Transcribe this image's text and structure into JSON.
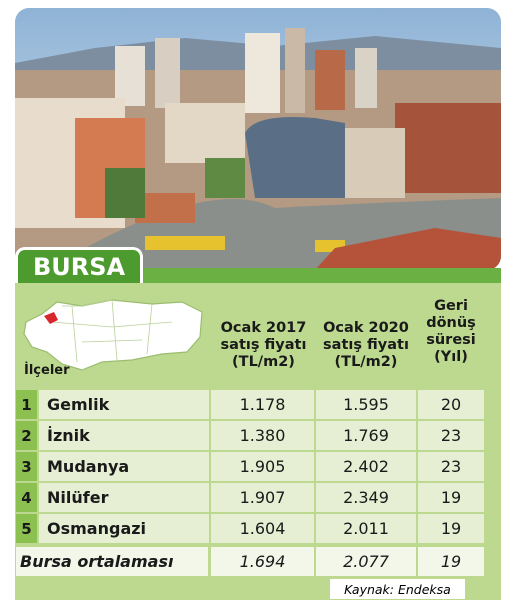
{
  "header": {
    "title": "BURSA"
  },
  "table": {
    "columns": [
      [
        "İlçeler"
      ],
      [
        "Ocak 2017",
        "satış fiyatı",
        "(TL/m2)"
      ],
      [
        "Ocak 2020",
        "satış fiyatı",
        "(TL/m2)"
      ],
      [
        "Geri",
        "dönüş",
        "süresi",
        "(Yıl)"
      ]
    ],
    "rows": [
      [
        "1",
        "Gemlik",
        "1.178",
        "1.595",
        "20"
      ],
      [
        "2",
        "İznik",
        "1.380",
        "1.769",
        "23"
      ],
      [
        "3",
        "Mudanya",
        "1.905",
        "2.402",
        "23"
      ],
      [
        "4",
        "Nilüfer",
        "1.907",
        "2.349",
        "19"
      ],
      [
        "5",
        "Osmangazi",
        "1.604",
        "2.011",
        "19"
      ]
    ],
    "average": [
      "Bursa ortalaması",
      "1.694",
      "2.077",
      "19"
    ]
  },
  "source": "Kaynak: Endeksa"
}
